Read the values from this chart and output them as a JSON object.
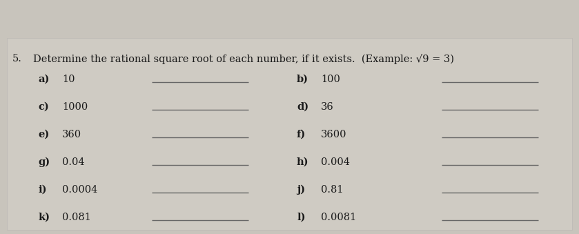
{
  "bg_color": "#c8c4bc",
  "content_bg": "#d4d0c8",
  "title_number": "5.",
  "title_text": "Determine the rational square root of each number, if it exists.  (Example: √9 = 3)",
  "items_left": [
    {
      "label": "a)",
      "value": "10"
    },
    {
      "label": "c)",
      "value": "1000"
    },
    {
      "label": "e)",
      "value": "360"
    },
    {
      "label": "g)",
      "value": "0.04"
    },
    {
      "label": "i)",
      "value": "0.0004"
    },
    {
      "label": "k)",
      "value": "0.081"
    }
  ],
  "items_right": [
    {
      "label": "b)",
      "value": "100"
    },
    {
      "label": "d)",
      "value": "36"
    },
    {
      "label": "f)",
      "value": "3600"
    },
    {
      "label": "h)",
      "value": "0.004"
    },
    {
      "label": "j)",
      "value": "0.81"
    },
    {
      "label": "l)",
      "value": "0.0081"
    }
  ],
  "text_color": "#1a1a1a",
  "line_color": "#666666",
  "font_size": 10.5,
  "title_font_size": 10.5,
  "figsize": [
    8.39,
    3.39
  ],
  "dpi": 100
}
